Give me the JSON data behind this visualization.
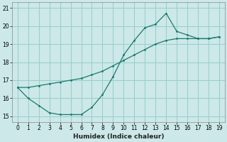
{
  "xlabel": "Humidex (Indice chaleur)",
  "background_color": "#cce8e8",
  "grid_color": "#99cccc",
  "line_color": "#1a7a6e",
  "line1_x": [
    0,
    1,
    2,
    3,
    4,
    5,
    6,
    7,
    8,
    9,
    10,
    11,
    12,
    13,
    14,
    15,
    16,
    17,
    18,
    19
  ],
  "line1_y": [
    16.6,
    16.0,
    15.6,
    15.2,
    15.1,
    15.1,
    15.1,
    15.5,
    16.2,
    17.2,
    18.4,
    19.2,
    19.9,
    20.1,
    20.7,
    19.7,
    19.5,
    19.3,
    19.3,
    19.4
  ],
  "line2_x": [
    0,
    1,
    2,
    3,
    4,
    5,
    6,
    7,
    8,
    9,
    10,
    11,
    12,
    13,
    14,
    15,
    16,
    17,
    18,
    19
  ],
  "line2_y": [
    16.6,
    16.6,
    16.7,
    16.8,
    16.9,
    17.0,
    17.1,
    17.3,
    17.5,
    17.8,
    18.1,
    18.4,
    18.7,
    19.0,
    19.2,
    19.3,
    19.3,
    19.3,
    19.3,
    19.4
  ],
  "ylim": [
    14.7,
    21.3
  ],
  "xlim": [
    -0.5,
    19.5
  ],
  "yticks": [
    15,
    16,
    17,
    18,
    19,
    20,
    21
  ],
  "xticks": [
    0,
    1,
    2,
    3,
    4,
    5,
    6,
    7,
    8,
    9,
    10,
    11,
    12,
    13,
    14,
    15,
    16,
    17,
    18,
    19
  ]
}
